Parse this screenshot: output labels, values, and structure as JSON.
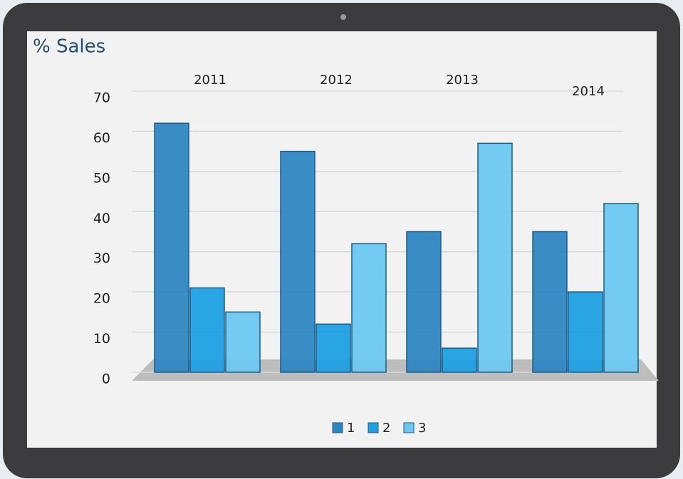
{
  "chart_data": {
    "type": "bar",
    "title": "% Sales",
    "categories": [
      "2011",
      "2012",
      "2013",
      "2014"
    ],
    "series": [
      {
        "name": "1",
        "color": "#2e86c1",
        "values": [
          62,
          55,
          35,
          35
        ]
      },
      {
        "name": "2",
        "color": "#1ea0e2",
        "values": [
          21,
          12,
          6,
          20
        ]
      },
      {
        "name": "3",
        "color": "#6cc8f0",
        "values": [
          15,
          32,
          57,
          42
        ]
      }
    ],
    "ylim": [
      0,
      70
    ],
    "yticks": [
      0,
      10,
      20,
      30,
      40,
      50,
      60,
      70
    ],
    "grid": true,
    "legend": "bottom"
  }
}
